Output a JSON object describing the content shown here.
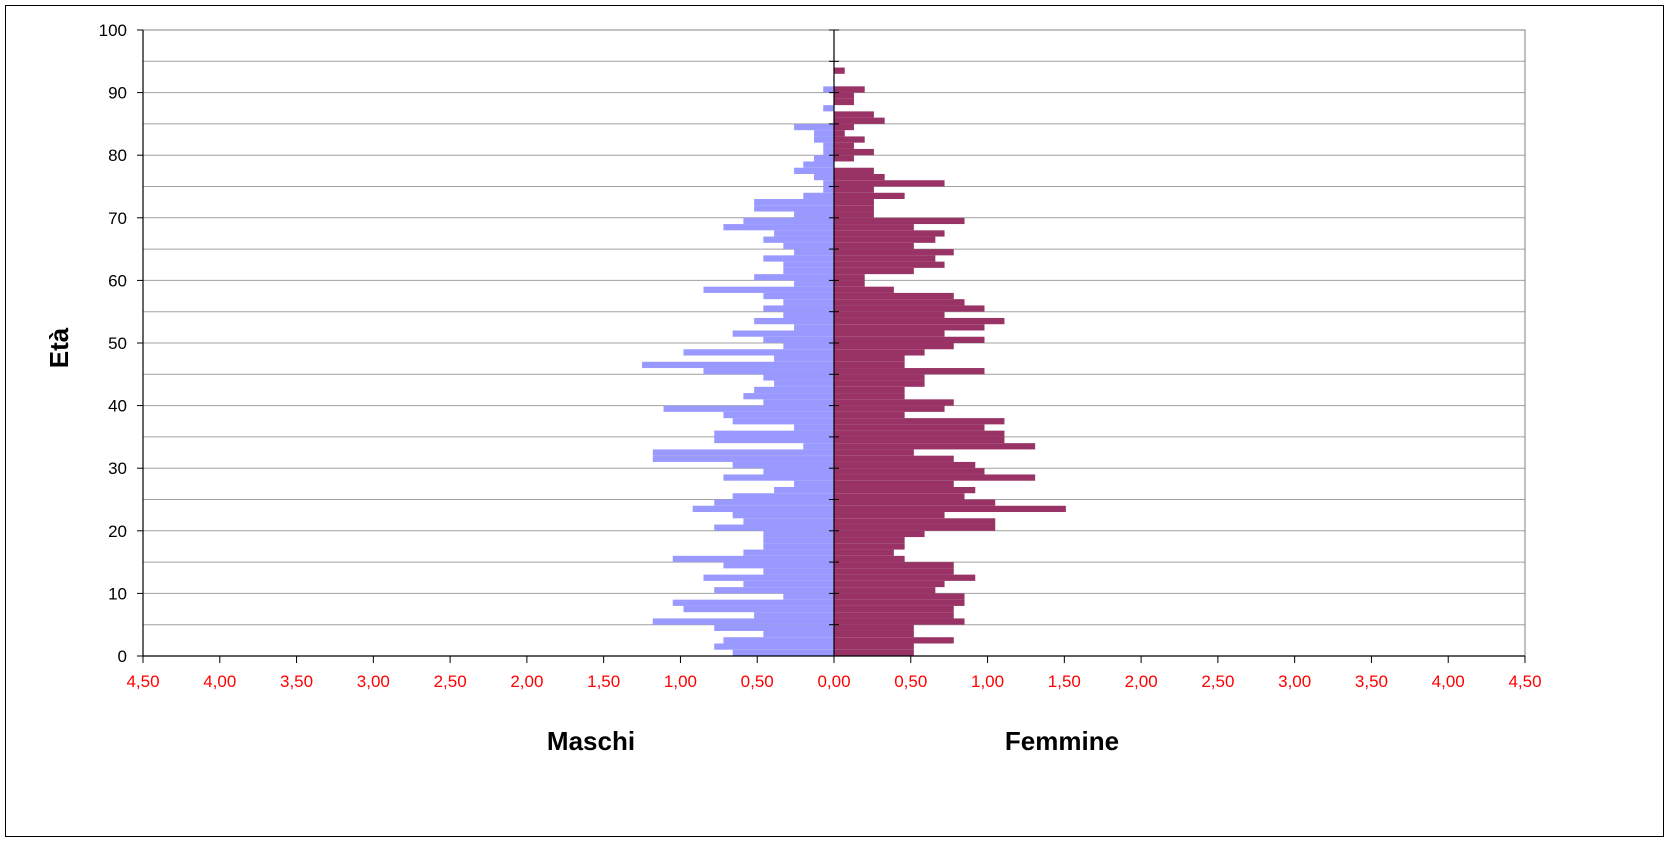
{
  "chart_data": {
    "type": "bar",
    "orientation": "horizontal",
    "layout": "population-pyramid",
    "ylabel": "Età",
    "left_label": "Maschi",
    "right_label": "Femmine",
    "y_ticks": [
      "0",
      "10",
      "20",
      "30",
      "40",
      "50",
      "60",
      "70",
      "80",
      "90",
      "100"
    ],
    "x_ticks": [
      "4,50",
      "4,00",
      "3,50",
      "3,00",
      "2,50",
      "2,00",
      "1,50",
      "1,00",
      "0,50",
      "0,00",
      "0,50",
      "1,00",
      "1,50",
      "2,00",
      "2,50",
      "3,00",
      "3,50",
      "4,00",
      "4,50"
    ],
    "xlim": [
      -4.5,
      4.5
    ],
    "ylim": [
      0,
      100
    ],
    "grid": "horizontal",
    "colors": {
      "maschi": "#9999ff",
      "femmine": "#993366",
      "tick_x": "#ff0000"
    },
    "ages": [
      0,
      1,
      2,
      3,
      4,
      5,
      6,
      7,
      8,
      9,
      10,
      11,
      12,
      13,
      14,
      15,
      16,
      17,
      18,
      19,
      20,
      21,
      22,
      23,
      24,
      25,
      26,
      27,
      28,
      29,
      30,
      31,
      32,
      33,
      34,
      35,
      36,
      37,
      38,
      39,
      40,
      41,
      42,
      43,
      44,
      45,
      46,
      47,
      48,
      49,
      50,
      51,
      52,
      53,
      54,
      55,
      56,
      57,
      58,
      59,
      60,
      61,
      62,
      63,
      64,
      65,
      66,
      67,
      68,
      69,
      70,
      71,
      72,
      73,
      74,
      75,
      76,
      77,
      78,
      79,
      80,
      81,
      82,
      83,
      84,
      85,
      86,
      87,
      88,
      89,
      90,
      91,
      92,
      93,
      94,
      95,
      96,
      97,
      98,
      99,
      100
    ],
    "series": [
      {
        "name": "Maschi",
        "values": [
          0.66,
          0.78,
          0.72,
          0.46,
          0.78,
          1.18,
          0.52,
          0.98,
          1.05,
          0.33,
          0.78,
          0.59,
          0.85,
          0.46,
          0.72,
          1.05,
          0.59,
          0.46,
          0.46,
          0.46,
          0.78,
          0.59,
          0.66,
          0.92,
          0.78,
          0.66,
          0.39,
          0.26,
          0.72,
          0.46,
          0.66,
          1.18,
          1.18,
          0.2,
          0.78,
          0.78,
          0.26,
          0.66,
          0.72,
          1.11,
          0.46,
          0.59,
          0.52,
          0.39,
          0.46,
          0.85,
          1.25,
          0.39,
          0.98,
          0.33,
          0.46,
          0.66,
          0.26,
          0.52,
          0.33,
          0.46,
          0.33,
          0.46,
          0.85,
          0.26,
          0.52,
          0.33,
          0.33,
          0.46,
          0.26,
          0.33,
          0.46,
          0.39,
          0.72,
          0.59,
          0.26,
          0.52,
          0.52,
          0.2,
          0.07,
          0.07,
          0.13,
          0.26,
          0.2,
          0.13,
          0.07,
          0.07,
          0.13,
          0.13,
          0.26,
          0.0,
          0.0,
          0.07,
          0.0,
          0.0,
          0.07,
          0.0,
          0.0,
          0.0,
          0.0,
          0.0,
          0.0,
          0.0,
          0.0,
          0.0,
          0.0
        ]
      },
      {
        "name": "Femmine",
        "values": [
          0.52,
          0.52,
          0.78,
          0.52,
          0.52,
          0.85,
          0.78,
          0.78,
          0.85,
          0.85,
          0.66,
          0.72,
          0.92,
          0.78,
          0.78,
          0.46,
          0.39,
          0.46,
          0.46,
          0.59,
          1.05,
          1.05,
          0.72,
          1.51,
          1.05,
          0.85,
          0.92,
          0.78,
          1.31,
          0.98,
          0.92,
          0.78,
          0.52,
          1.31,
          1.11,
          1.11,
          0.98,
          1.11,
          0.46,
          0.72,
          0.78,
          0.46,
          0.46,
          0.59,
          0.59,
          0.98,
          0.46,
          0.46,
          0.59,
          0.78,
          0.98,
          0.72,
          0.98,
          1.11,
          0.72,
          0.98,
          0.85,
          0.78,
          0.39,
          0.2,
          0.2,
          0.52,
          0.72,
          0.66,
          0.78,
          0.52,
          0.66,
          0.72,
          0.52,
          0.85,
          0.26,
          0.26,
          0.26,
          0.46,
          0.26,
          0.72,
          0.33,
          0.26,
          0.0,
          0.13,
          0.26,
          0.13,
          0.2,
          0.07,
          0.13,
          0.33,
          0.26,
          0.0,
          0.13,
          0.13,
          0.2,
          0.0,
          0.0,
          0.07,
          0.0,
          0.0,
          0.0,
          0.0,
          0.0,
          0.0,
          0.0
        ]
      }
    ]
  }
}
